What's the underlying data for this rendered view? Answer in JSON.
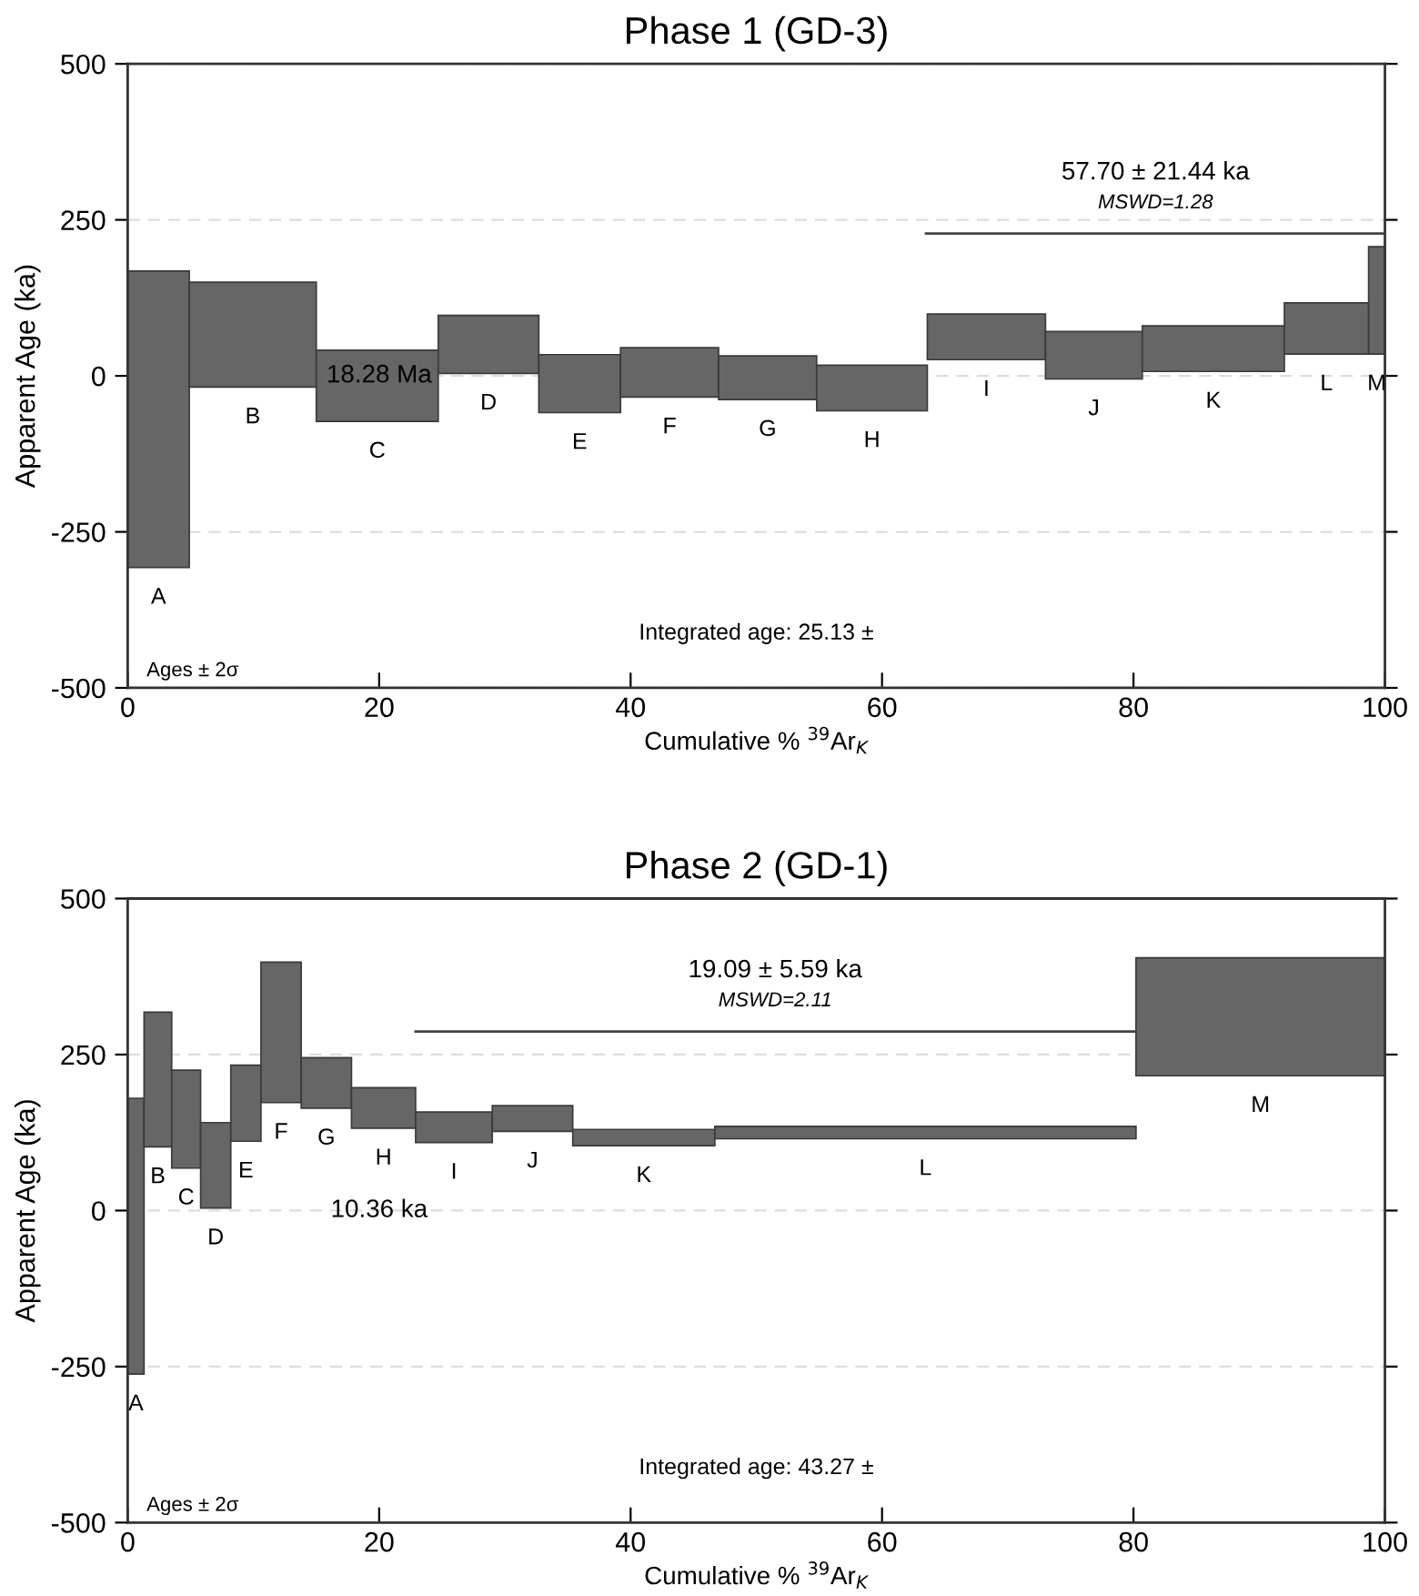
{
  "chart_data": [
    {
      "type": "histogram",
      "title": "Phase 1 (GD-3)",
      "xlabel": "Cumulative % $^{39}$Ar$_{K}$",
      "ylabel": "Apparent Age (ka)",
      "xlim": [
        0,
        100
      ],
      "ylim": [
        -500,
        500
      ],
      "xticks": [
        0,
        20,
        40,
        60,
        80,
        100
      ],
      "yticks": [
        -500,
        -250,
        0,
        250,
        500
      ],
      "grid": "y",
      "series": [
        {
          "type": "histogram",
          "color": "#666666",
          "bins": [
            0,
            4.9,
            15.0,
            24.7,
            32.7,
            39.2,
            47.0,
            54.8,
            63.6,
            73.0,
            80.7,
            92.0,
            98.7,
            100
          ],
          "base": [
            -307,
            -18,
            -73,
            4,
            -59,
            -34,
            -38,
            -56,
            26,
            -5,
            7,
            35,
            35
          ],
          "values": [
            475,
            168,
            114,
            93,
            93,
            79,
            70,
            73,
            73,
            76,
            73,
            82,
            172
          ]
        },
        {
          "type": "line",
          "color": "#444444",
          "x": [
            63.5,
            100
          ],
          "values": [
            228,
            228
          ]
        }
      ],
      "annotations": [
        "A",
        "B",
        "C",
        "D",
        "E",
        "F",
        "G",
        "H",
        "I",
        "J",
        "K",
        "L",
        "M",
        "18.28 Ma",
        "57.70 ± 21.44 ka",
        "MSWD=1.28",
        "Ages ± 2σ",
        "Integrated age: 25.13 ±"
      ]
    },
    {
      "type": "histogram",
      "title": "Phase 2 (GD-1)",
      "xlabel": "Cumulative % $^{39}$Ar$_{K}$",
      "ylabel": "Apparent Age (ka)",
      "xlim": [
        0,
        100
      ],
      "ylim": [
        -500,
        500
      ],
      "xticks": [
        0,
        20,
        40,
        60,
        80,
        100
      ],
      "yticks": [
        -500,
        -250,
        0,
        250,
        500
      ],
      "grid": "y",
      "series": [
        {
          "type": "histogram",
          "color": "#666666",
          "bins": [
            0,
            1.3,
            3.5,
            5.8,
            8.2,
            10.6,
            13.8,
            17.8,
            22.9,
            29.0,
            35.4,
            46.7,
            80.2,
            100
          ],
          "base": [
            -262,
            102,
            68,
            4,
            111,
            173,
            164,
            132,
            109,
            127,
            104,
            115,
            216
          ],
          "values": [
            442,
            216,
            157,
            137,
            122,
            225,
            81,
            65,
            49,
            41,
            26,
            20,
            189
          ]
        },
        {
          "type": "line",
          "color": "#444444",
          "x": [
            22.9,
            80.1
          ],
          "values": [
            287,
            287
          ]
        }
      ],
      "annotations": [
        "A",
        "B",
        "C",
        "D",
        "E",
        "F",
        "G",
        "H",
        "I",
        "J",
        "K",
        "L",
        "M",
        "10.36 ka",
        "19.09 ± 5.59 ka",
        "MSWD=2.11",
        "Ages ± 2σ",
        "Integrated age: 43.27 ±"
      ]
    }
  ]
}
